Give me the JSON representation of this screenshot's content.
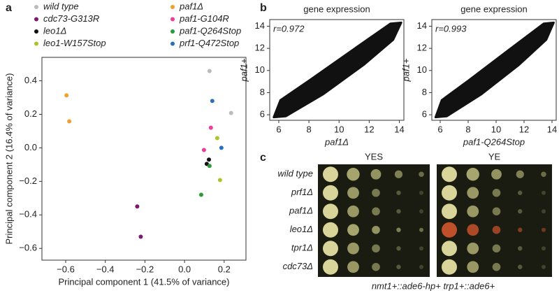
{
  "panel_labels": [
    "a",
    "b",
    "c"
  ],
  "chart_data": [
    {
      "type": "scatter",
      "xlabel": "Principal component 1 (41.5% of variance)",
      "ylabel": "Principal component 2 (16.4% of variance)",
      "xlim": [
        -0.72,
        0.31
      ],
      "ylim": [
        -0.67,
        0.54
      ],
      "xticks": [
        {
          "value": -0.6,
          "label": "−0.6"
        },
        {
          "value": -0.4,
          "label": "−0.4"
        },
        {
          "value": -0.2,
          "label": "−0.2"
        },
        {
          "value": 0,
          "label": "0.0"
        },
        0.2
      ],
      "yticks": [
        {
          "value": -0.6,
          "label": "−0.6"
        },
        {
          "value": -0.4,
          "label": "−0.4"
        },
        {
          "value": -0.2,
          "label": "−0.2"
        },
        {
          "value": 0,
          "label": "0.0"
        },
        0.2,
        0.4
      ],
      "series": [
        {
          "name": "wild type",
          "color": "#bbbbbb",
          "x": [
            0.126,
            0.235
          ],
          "values": [
            0.458,
            0.208
          ]
        },
        {
          "name": "cdc73-G313R",
          "color": "#7b1a6e",
          "x": [
            -0.239,
            -0.221
          ],
          "values": [
            -0.35,
            -0.53
          ]
        },
        {
          "name": "leo1Δ",
          "color": "#111111",
          "x": [
            0.123,
            0.112
          ],
          "values": [
            -0.07,
            -0.096
          ]
        },
        {
          "name": "leo1-W157Stop",
          "color": "#a8c62a",
          "x": [
            0.165,
            0.179
          ],
          "values": [
            0.058,
            -0.192
          ]
        },
        {
          "name": "paf1Δ",
          "color": "#f0a030",
          "x": [
            -0.596,
            -0.582
          ],
          "values": [
            0.313,
            0.158
          ]
        },
        {
          "name": "paf1-G104R",
          "color": "#ee3d9a",
          "x": [
            0.133,
            0.098
          ],
          "values": [
            0.12,
            -0.013
          ]
        },
        {
          "name": "paf1-Q264Stop",
          "color": "#2a9a3a",
          "x": [
            0.126,
            0.084
          ],
          "values": [
            -0.108,
            -0.28
          ]
        },
        {
          "name": "prf1-Q472Stop",
          "color": "#2a6fb8",
          "x": [
            0.14,
            0.186
          ],
          "values": [
            0.28,
            0.0
          ]
        }
      ]
    },
    {
      "type": "density-scatter",
      "title": "gene expression",
      "annotation": "r=0.972",
      "xlabel": "paf1Δ",
      "ylabel": "paf1+",
      "xlim": [
        5.4,
        14.3
      ],
      "ylim": [
        5.5,
        14.6
      ],
      "xticks": [
        6,
        8,
        10,
        12,
        14
      ],
      "yticks": [
        6,
        8,
        10,
        12,
        14
      ]
    },
    {
      "type": "density-scatter",
      "title": "gene expression",
      "annotation": "r=0.993",
      "xlabel": "paf1-Q264Stop",
      "ylabel": "paf1+",
      "xlim": [
        5.4,
        14.3
      ],
      "ylim": [
        5.5,
        14.6
      ],
      "xticks": [
        6,
        8,
        10,
        12,
        14
      ],
      "yticks": [
        6,
        8,
        10,
        12,
        14
      ]
    }
  ],
  "growth_panel": {
    "media": [
      "YES",
      "YE"
    ],
    "strains": [
      "wild type",
      "prf1Δ",
      "paf1Δ",
      "leo1Δ",
      "tpr1Δ",
      "cdc73Δ"
    ],
    "caption": "nmt1+::ade6-hp+ trp1+::ade6+"
  }
}
